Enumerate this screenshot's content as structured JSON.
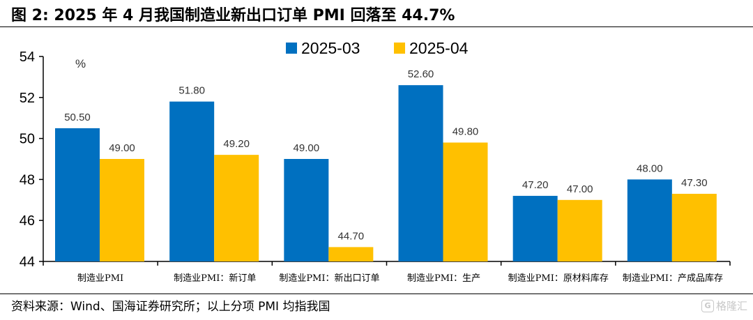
{
  "figure": {
    "title": "图 2:  2025 年 4 月我国制造业新出口订单 PMI 回落至 44.7%",
    "source": "资料来源：Wind、国海证券研究所；以上分项 PMI 均指我国",
    "watermark": "格隆汇",
    "watermark_logo": "G"
  },
  "chart_data": {
    "type": "bar",
    "unit_label": "%",
    "categories": [
      "制造业PMI",
      "制造业PMI：新订单",
      "制造业PMI：新出口订单",
      "制造业PMI：生产",
      "制造业PMI：原材料库存",
      "制造业PMI：产成品库存"
    ],
    "series": [
      {
        "name": "2025-03",
        "color": "#0070C0",
        "values": [
          50.5,
          51.8,
          49.0,
          52.6,
          47.2,
          48.0
        ],
        "labels": [
          "50.50",
          "51.80",
          "49.00",
          "52.60",
          "47.20",
          "48.00"
        ]
      },
      {
        "name": "2025-04",
        "color": "#FFC000",
        "values": [
          49.0,
          49.2,
          44.7,
          49.8,
          47.0,
          47.3
        ],
        "labels": [
          "49.00",
          "49.20",
          "44.70",
          "49.80",
          "47.00",
          "47.30"
        ]
      }
    ],
    "ylim": [
      44,
      54
    ],
    "yticks": [
      44,
      46,
      48,
      50,
      52,
      54
    ],
    "grid": false,
    "legend": "top-center"
  }
}
